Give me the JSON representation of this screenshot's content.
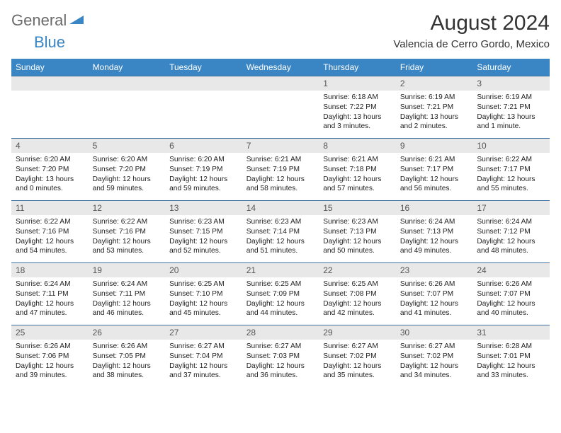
{
  "branding": {
    "logo_general": "General",
    "logo_blue": "Blue",
    "logo_shape_color": "#3a85c4"
  },
  "header": {
    "month_title": "August 2024",
    "location": "Valencia de Cerro Gordo, Mexico"
  },
  "colors": {
    "header_bg": "#3a85c4",
    "header_text": "#ffffff",
    "daynum_bg": "#e8e8e8",
    "border": "#3a6fa0",
    "text": "#222222"
  },
  "day_names": [
    "Sunday",
    "Monday",
    "Tuesday",
    "Wednesday",
    "Thursday",
    "Friday",
    "Saturday"
  ],
  "weeks": [
    [
      null,
      null,
      null,
      null,
      {
        "n": "1",
        "sr": "6:18 AM",
        "ss": "7:22 PM",
        "dl": "13 hours and 3 minutes."
      },
      {
        "n": "2",
        "sr": "6:19 AM",
        "ss": "7:21 PM",
        "dl": "13 hours and 2 minutes."
      },
      {
        "n": "3",
        "sr": "6:19 AM",
        "ss": "7:21 PM",
        "dl": "13 hours and 1 minute."
      }
    ],
    [
      {
        "n": "4",
        "sr": "6:20 AM",
        "ss": "7:20 PM",
        "dl": "13 hours and 0 minutes."
      },
      {
        "n": "5",
        "sr": "6:20 AM",
        "ss": "7:20 PM",
        "dl": "12 hours and 59 minutes."
      },
      {
        "n": "6",
        "sr": "6:20 AM",
        "ss": "7:19 PM",
        "dl": "12 hours and 59 minutes."
      },
      {
        "n": "7",
        "sr": "6:21 AM",
        "ss": "7:19 PM",
        "dl": "12 hours and 58 minutes."
      },
      {
        "n": "8",
        "sr": "6:21 AM",
        "ss": "7:18 PM",
        "dl": "12 hours and 57 minutes."
      },
      {
        "n": "9",
        "sr": "6:21 AM",
        "ss": "7:17 PM",
        "dl": "12 hours and 56 minutes."
      },
      {
        "n": "10",
        "sr": "6:22 AM",
        "ss": "7:17 PM",
        "dl": "12 hours and 55 minutes."
      }
    ],
    [
      {
        "n": "11",
        "sr": "6:22 AM",
        "ss": "7:16 PM",
        "dl": "12 hours and 54 minutes."
      },
      {
        "n": "12",
        "sr": "6:22 AM",
        "ss": "7:16 PM",
        "dl": "12 hours and 53 minutes."
      },
      {
        "n": "13",
        "sr": "6:23 AM",
        "ss": "7:15 PM",
        "dl": "12 hours and 52 minutes."
      },
      {
        "n": "14",
        "sr": "6:23 AM",
        "ss": "7:14 PM",
        "dl": "12 hours and 51 minutes."
      },
      {
        "n": "15",
        "sr": "6:23 AM",
        "ss": "7:13 PM",
        "dl": "12 hours and 50 minutes."
      },
      {
        "n": "16",
        "sr": "6:24 AM",
        "ss": "7:13 PM",
        "dl": "12 hours and 49 minutes."
      },
      {
        "n": "17",
        "sr": "6:24 AM",
        "ss": "7:12 PM",
        "dl": "12 hours and 48 minutes."
      }
    ],
    [
      {
        "n": "18",
        "sr": "6:24 AM",
        "ss": "7:11 PM",
        "dl": "12 hours and 47 minutes."
      },
      {
        "n": "19",
        "sr": "6:24 AM",
        "ss": "7:11 PM",
        "dl": "12 hours and 46 minutes."
      },
      {
        "n": "20",
        "sr": "6:25 AM",
        "ss": "7:10 PM",
        "dl": "12 hours and 45 minutes."
      },
      {
        "n": "21",
        "sr": "6:25 AM",
        "ss": "7:09 PM",
        "dl": "12 hours and 44 minutes."
      },
      {
        "n": "22",
        "sr": "6:25 AM",
        "ss": "7:08 PM",
        "dl": "12 hours and 42 minutes."
      },
      {
        "n": "23",
        "sr": "6:26 AM",
        "ss": "7:07 PM",
        "dl": "12 hours and 41 minutes."
      },
      {
        "n": "24",
        "sr": "6:26 AM",
        "ss": "7:07 PM",
        "dl": "12 hours and 40 minutes."
      }
    ],
    [
      {
        "n": "25",
        "sr": "6:26 AM",
        "ss": "7:06 PM",
        "dl": "12 hours and 39 minutes."
      },
      {
        "n": "26",
        "sr": "6:26 AM",
        "ss": "7:05 PM",
        "dl": "12 hours and 38 minutes."
      },
      {
        "n": "27",
        "sr": "6:27 AM",
        "ss": "7:04 PM",
        "dl": "12 hours and 37 minutes."
      },
      {
        "n": "28",
        "sr": "6:27 AM",
        "ss": "7:03 PM",
        "dl": "12 hours and 36 minutes."
      },
      {
        "n": "29",
        "sr": "6:27 AM",
        "ss": "7:02 PM",
        "dl": "12 hours and 35 minutes."
      },
      {
        "n": "30",
        "sr": "6:27 AM",
        "ss": "7:02 PM",
        "dl": "12 hours and 34 minutes."
      },
      {
        "n": "31",
        "sr": "6:28 AM",
        "ss": "7:01 PM",
        "dl": "12 hours and 33 minutes."
      }
    ]
  ],
  "labels": {
    "sunrise": "Sunrise:",
    "sunset": "Sunset:",
    "daylight": "Daylight:"
  }
}
